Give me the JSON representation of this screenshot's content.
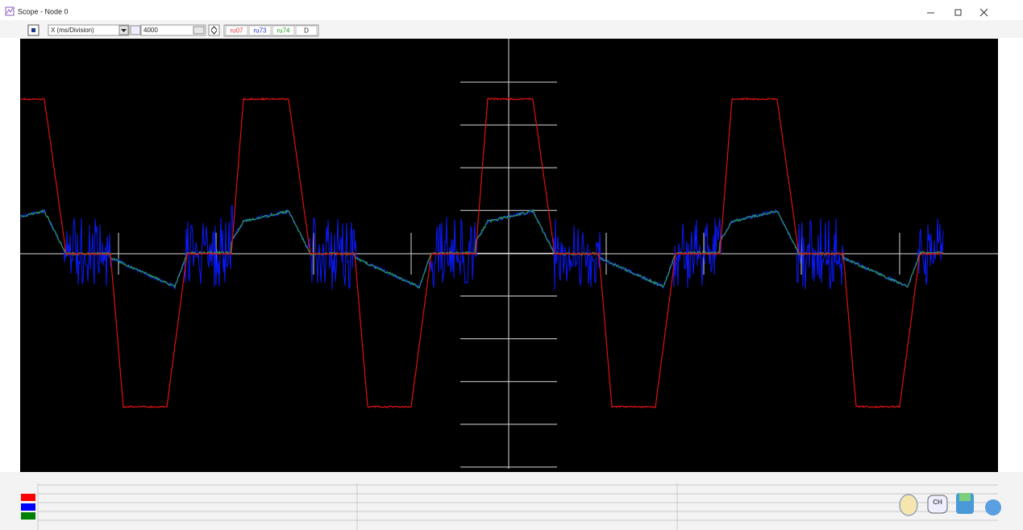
{
  "window": {
    "title": "Scope - Node 0"
  },
  "toolbar": {
    "axis_mode": "X (ms/Division)",
    "value": "4000",
    "channels": [
      "ru07",
      "ru73",
      "ru74"
    ],
    "button": "D"
  },
  "tray": {
    "icon_label": "CH"
  }
}
